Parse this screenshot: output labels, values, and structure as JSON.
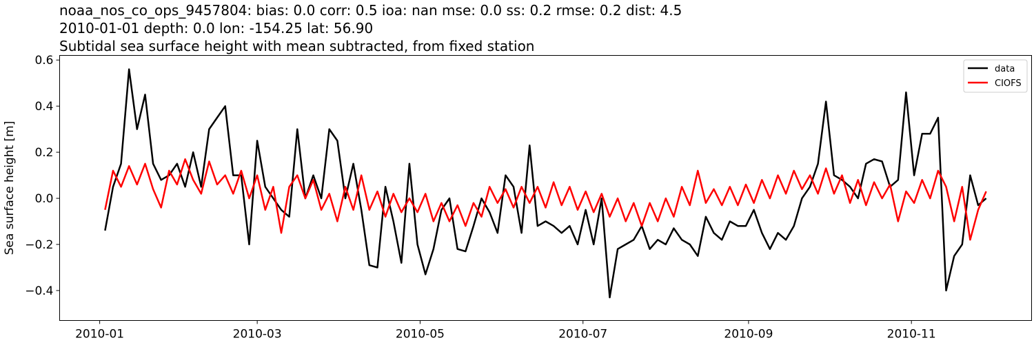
{
  "chart_data": {
    "type": "line",
    "title_lines": [
      "noaa_nos_co_ops_9457804: bias: 0.0  corr: 0.5  ioa: nan  mse: 0.0  ss: 0.2  rmse: 0.2  dist: 4.5",
      "2010-01-01 depth: 0.0 lon: -154.25 lat: 56.90",
      "Subtidal sea surface height with mean subtracted, from fixed station"
    ],
    "xlabel": "",
    "ylabel": "Sea surface height [m]",
    "xlim": [
      "2009-12-17",
      "2010-12-16"
    ],
    "ylim": [
      -0.53,
      0.62
    ],
    "xticks": [
      "2010-01",
      "2010-03",
      "2010-05",
      "2010-07",
      "2010-09",
      "2010-11"
    ],
    "xtick_dates": [
      "2010-01-01",
      "2010-03-01",
      "2010-05-01",
      "2010-07-01",
      "2010-09-01",
      "2010-11-01"
    ],
    "yticks": [
      0.6,
      0.4,
      0.2,
      0.0,
      -0.2,
      -0.4
    ],
    "ytick_labels": [
      "0.6",
      "0.4",
      "0.2",
      "0.0",
      "−0.2",
      "−0.4"
    ],
    "grid": false,
    "legend_position": "top-right",
    "x": [
      "2010-01-03",
      "2010-01-06",
      "2010-01-09",
      "2010-01-12",
      "2010-01-15",
      "2010-01-18",
      "2010-01-21",
      "2010-01-24",
      "2010-01-27",
      "2010-01-30",
      "2010-02-02",
      "2010-02-05",
      "2010-02-08",
      "2010-02-11",
      "2010-02-14",
      "2010-02-17",
      "2010-02-20",
      "2010-02-23",
      "2010-02-26",
      "2010-03-01",
      "2010-03-04",
      "2010-03-07",
      "2010-03-10",
      "2010-03-13",
      "2010-03-16",
      "2010-03-19",
      "2010-03-22",
      "2010-03-25",
      "2010-03-28",
      "2010-03-31",
      "2010-04-03",
      "2010-04-06",
      "2010-04-09",
      "2010-04-12",
      "2010-04-15",
      "2010-04-18",
      "2010-04-21",
      "2010-04-24",
      "2010-04-27",
      "2010-04-30",
      "2010-05-03",
      "2010-05-06",
      "2010-05-09",
      "2010-05-12",
      "2010-05-15",
      "2010-05-18",
      "2010-05-21",
      "2010-05-24",
      "2010-05-27",
      "2010-05-30",
      "2010-06-02",
      "2010-06-05",
      "2010-06-08",
      "2010-06-11",
      "2010-06-14",
      "2010-06-17",
      "2010-06-20",
      "2010-06-23",
      "2010-06-26",
      "2010-06-29",
      "2010-07-02",
      "2010-07-05",
      "2010-07-08",
      "2010-07-11",
      "2010-07-14",
      "2010-07-17",
      "2010-07-20",
      "2010-07-23",
      "2010-07-26",
      "2010-07-29",
      "2010-08-01",
      "2010-08-04",
      "2010-08-07",
      "2010-08-10",
      "2010-08-13",
      "2010-08-16",
      "2010-08-19",
      "2010-08-22",
      "2010-08-25",
      "2010-08-28",
      "2010-08-31",
      "2010-09-03",
      "2010-09-06",
      "2010-09-09",
      "2010-09-12",
      "2010-09-15",
      "2010-09-18",
      "2010-09-21",
      "2010-09-24",
      "2010-09-27",
      "2010-09-30",
      "2010-10-03",
      "2010-10-06",
      "2010-10-09",
      "2010-10-12",
      "2010-10-15",
      "2010-10-18",
      "2010-10-21",
      "2010-10-24",
      "2010-10-27",
      "2010-10-30",
      "2010-11-02",
      "2010-11-05",
      "2010-11-08",
      "2010-11-11",
      "2010-11-14",
      "2010-11-17",
      "2010-11-20",
      "2010-11-23",
      "2010-11-26",
      "2010-11-29"
    ],
    "series": [
      {
        "name": "data",
        "color": "#000000",
        "values": [
          -0.14,
          0.05,
          0.15,
          0.56,
          0.3,
          0.45,
          0.15,
          0.08,
          0.1,
          0.15,
          0.05,
          0.2,
          0.05,
          0.3,
          0.35,
          0.4,
          0.1,
          0.1,
          -0.2,
          0.25,
          0.05,
          0.0,
          -0.05,
          -0.08,
          0.3,
          0.0,
          0.1,
          0.0,
          0.3,
          0.25,
          0.0,
          0.15,
          -0.05,
          -0.29,
          -0.3,
          0.05,
          -0.1,
          -0.28,
          0.15,
          -0.2,
          -0.33,
          -0.22,
          -0.05,
          0.0,
          -0.22,
          -0.23,
          -0.12,
          0.0,
          -0.06,
          -0.15,
          0.1,
          0.05,
          -0.15,
          0.23,
          -0.12,
          -0.1,
          -0.12,
          -0.15,
          -0.12,
          -0.2,
          -0.05,
          -0.2,
          0.0,
          -0.43,
          -0.22,
          -0.2,
          -0.18,
          -0.12,
          -0.22,
          -0.18,
          -0.2,
          -0.13,
          -0.18,
          -0.2,
          -0.25,
          -0.08,
          -0.15,
          -0.18,
          -0.1,
          -0.12,
          -0.12,
          -0.05,
          -0.15,
          -0.22,
          -0.15,
          -0.18,
          -0.12,
          0.0,
          0.05,
          0.15,
          0.42,
          0.1,
          0.08,
          0.05,
          0.0,
          0.15,
          0.17,
          0.16,
          0.05,
          0.08,
          0.46,
          0.1,
          0.28,
          0.28,
          0.35,
          -0.4,
          -0.25,
          -0.2,
          0.1,
          -0.03,
          0.0
        ]
      },
      {
        "name": "CIOFS",
        "color": "#ff0000",
        "values": [
          -0.05,
          0.12,
          0.05,
          0.14,
          0.06,
          0.15,
          0.04,
          -0.04,
          0.12,
          0.06,
          0.17,
          0.08,
          0.02,
          0.16,
          0.06,
          0.1,
          0.02,
          0.12,
          0.0,
          0.1,
          -0.05,
          0.05,
          -0.15,
          0.05,
          0.1,
          0.0,
          0.08,
          -0.05,
          0.02,
          -0.1,
          0.05,
          -0.05,
          0.1,
          -0.05,
          0.03,
          -0.08,
          0.02,
          -0.06,
          0.0,
          -0.06,
          0.02,
          -0.1,
          -0.02,
          -0.1,
          -0.03,
          -0.12,
          -0.02,
          -0.08,
          0.05,
          -0.02,
          0.04,
          -0.04,
          0.05,
          -0.02,
          0.05,
          -0.04,
          0.07,
          -0.03,
          0.05,
          -0.05,
          0.03,
          -0.06,
          0.02,
          -0.08,
          0.0,
          -0.1,
          -0.02,
          -0.12,
          -0.02,
          -0.1,
          0.0,
          -0.08,
          0.05,
          -0.03,
          0.12,
          -0.02,
          0.04,
          -0.03,
          0.05,
          -0.03,
          0.06,
          -0.02,
          0.08,
          0.0,
          0.1,
          0.02,
          0.12,
          0.04,
          0.1,
          0.02,
          0.13,
          0.02,
          0.1,
          -0.02,
          0.08,
          -0.03,
          0.07,
          0.0,
          0.06,
          -0.1,
          0.03,
          -0.02,
          0.08,
          0.0,
          0.12,
          0.05,
          -0.1,
          0.05,
          -0.18,
          -0.05,
          0.03
        ]
      }
    ]
  }
}
